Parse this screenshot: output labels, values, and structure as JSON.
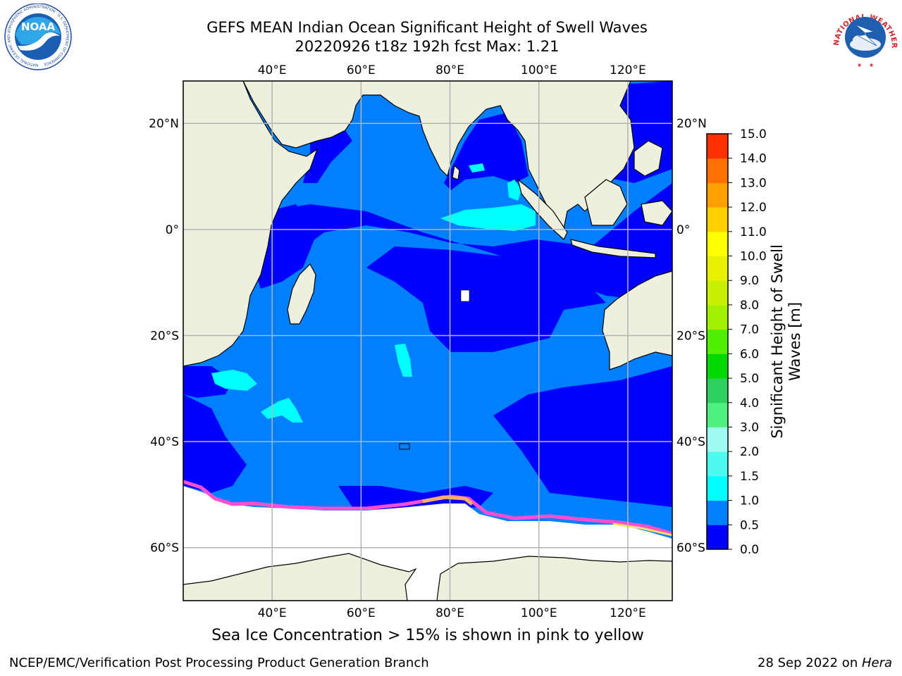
{
  "titles": {
    "line1": "GEFS MEAN Indian Ocean Significant Height of Swell Waves",
    "line2": "20220926 t18z 192h fcst    Max: 1.21"
  },
  "logos": {
    "left": {
      "name": "NOAA",
      "ring_text": "NATIONAL OCEANIC AND ATMOSPHERIC ADMINISTRATION · U.S. DEPARTMENT OF COMMERCE"
    },
    "right": {
      "name": "NATIONAL WEATHER SERVICE"
    }
  },
  "map": {
    "lon_range": [
      20,
      130
    ],
    "lat_range": [
      -70,
      28
    ],
    "lon_ticks": [
      "40°E",
      "60°E",
      "80°E",
      "100°E",
      "120°E"
    ],
    "lon_tick_values": [
      40,
      60,
      80,
      100,
      120
    ],
    "lat_ticks": [
      "20°N",
      "0°",
      "20°S",
      "40°S",
      "60°S"
    ],
    "lat_tick_values": [
      20,
      0,
      -20,
      -40,
      -60
    ],
    "grid": true,
    "colors": {
      "land": "#efefdd",
      "ice": "#ffffff",
      "swell_0_0_5": "#0000ff",
      "swell_0_5_1_0": "#0080ff",
      "swell_1_0_1_5": "#00ffff",
      "ice_edge": [
        "#ff4fd0",
        "#ffb060",
        "#ffe060"
      ]
    }
  },
  "colorbar": {
    "label_line1": "Significant Height of Swell",
    "label_line2": "Waves [m]",
    "ticks": [
      "0.0",
      "0.5",
      "1.0",
      "1.5",
      "2.0",
      "3.0",
      "4.0",
      "5.0",
      "6.0",
      "7.0",
      "8.0",
      "9.0",
      "10.0",
      "11.0",
      "12.0",
      "13.0",
      "14.0",
      "15.0"
    ],
    "colors": [
      "#0000ff",
      "#0080ff",
      "#00ffff",
      "#4cfaf0",
      "#9efaf0",
      "#50f080",
      "#30d060",
      "#00d800",
      "#50f000",
      "#a0f000",
      "#c8f000",
      "#e8f000",
      "#ffff00",
      "#ffd000",
      "#ffa000",
      "#ff7000",
      "#ff3000",
      "#ff0000"
    ]
  },
  "caption": "Sea Ice Concentration > 15% is shown in pink to yellow",
  "footer": {
    "left": "NCEP/EMC/Verification Post Processing Product Generation Branch",
    "right_prefix": "28 Sep 2022 on ",
    "right_host": "Hera"
  }
}
